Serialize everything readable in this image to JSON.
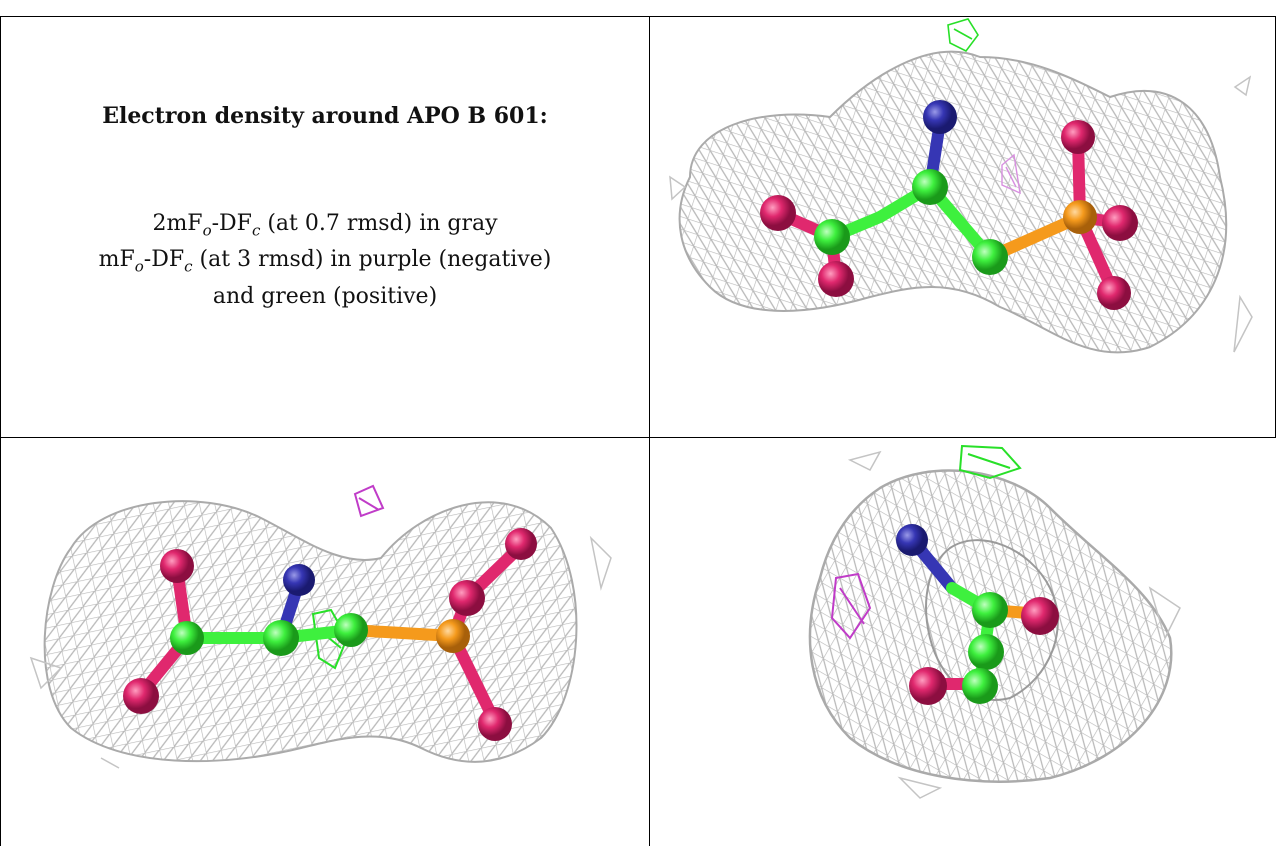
{
  "caption": {
    "title": "Electron density around APO B 601:",
    "line1_a": "2mF",
    "line1_o": "o",
    "line1_b": "-DF",
    "line1_c": "c",
    "line1_rest": " (at 0.7 rmsd) in gray",
    "line2_a": "mF",
    "line2_o": "o",
    "line2_b": "-DF",
    "line2_c": "c",
    "line2_rest": " (at 3 rmsd) in purple (negative)",
    "line3": "and green (positive)"
  },
  "colors": {
    "mesh_2fofc": "#b9b9b9",
    "mesh_negative": "#c03cc8",
    "mesh_positive": "#28e028",
    "carbon": "#3ef03e",
    "nitrogen": "#3636b4",
    "oxygen": "#e0286e",
    "phosphorus": "#f59a1c"
  }
}
